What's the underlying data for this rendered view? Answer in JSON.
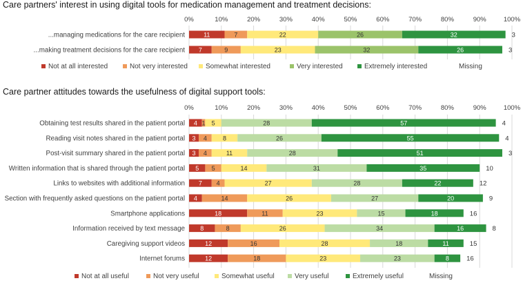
{
  "chart_data": [
    {
      "type": "bar",
      "orientation": "horizontal",
      "stacked": true,
      "title": "Care partners' interest in using digital tools for medication management and treatment decisions:",
      "xlim": [
        0,
        100
      ],
      "tick_labels": [
        "0%",
        "10%",
        "20%",
        "30%",
        "40%",
        "50%",
        "60%",
        "70%",
        "80%",
        "90%",
        "100%"
      ],
      "categories": [
        "...managing medications for the care recipient",
        "...making treatment decisions for the care recipient"
      ],
      "series": [
        {
          "name": "Not at all interested",
          "color": "#c0392b",
          "values": [
            11,
            7
          ]
        },
        {
          "name": "Not very interested",
          "color": "#ef9a5a",
          "values": [
            7,
            9
          ]
        },
        {
          "name": "Somewhat interested",
          "color": "#ffe97a",
          "values": [
            22,
            23
          ]
        },
        {
          "name": "Very interested",
          "color": "#9bc36a",
          "values": [
            26,
            32
          ]
        },
        {
          "name": "Extremely interested",
          "color": "#2e9440",
          "values": [
            32,
            26
          ]
        }
      ],
      "missing": {
        "name": "Missing",
        "values": [
          3,
          3
        ]
      },
      "legend_position": "bottom"
    },
    {
      "type": "bar",
      "orientation": "horizontal",
      "stacked": true,
      "title": "Care partner attitudes towards the usefulness of digital support tools:",
      "xlim": [
        0,
        100
      ],
      "tick_labels": [
        "0%",
        "10%",
        "20%",
        "30%",
        "40%",
        "50%",
        "60%",
        "70%",
        "80%",
        "90%",
        "100%"
      ],
      "categories": [
        "Obtaining test results shared in the patient portal",
        "Reading visit notes shared in the patient portal",
        "Post-visit summary shared in the patient portal",
        "Written information that is shared through the patient portal",
        "Links to websites with additional information",
        "Section with frequently asked questions on the patient portal",
        "Smartphone applications",
        "Information received by text message",
        "Caregiving support videos",
        "Internet forums"
      ],
      "series": [
        {
          "name": "Not at all useful",
          "color": "#c0392b",
          "values": [
            4,
            3,
            3,
            5,
            7,
            4,
            18,
            8,
            12,
            12
          ]
        },
        {
          "name": "Not very useful",
          "color": "#ef9a5a",
          "values": [
            1,
            4,
            4,
            5,
            4,
            14,
            11,
            8,
            16,
            18
          ]
        },
        {
          "name": "Somewhat useful",
          "color": "#ffe97a",
          "values": [
            5,
            8,
            11,
            14,
            27,
            26,
            23,
            26,
            28,
            23
          ]
        },
        {
          "name": "Very useful",
          "color": "#bcdca4",
          "values": [
            28,
            26,
            28,
            31,
            28,
            27,
            15,
            34,
            18,
            23
          ]
        },
        {
          "name": "Extremely useful",
          "color": "#2e9440",
          "values": [
            57,
            55,
            51,
            35,
            22,
            20,
            18,
            16,
            11,
            8
          ]
        }
      ],
      "missing": {
        "name": "Missing",
        "values": [
          4,
          4,
          3,
          10,
          12,
          9,
          16,
          8,
          15,
          16
        ]
      },
      "legend_position": "bottom"
    }
  ]
}
